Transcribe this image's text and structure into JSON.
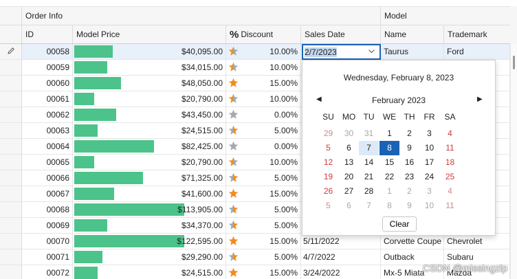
{
  "bands": {
    "order_info": "Order Info",
    "model": "Model"
  },
  "columns": {
    "id": "ID",
    "model_price": "Model Price",
    "discount_icon": "%",
    "discount": "Discount",
    "sales_date": "Sales Date",
    "name": "Name",
    "trademark": "Trademark"
  },
  "rows": [
    {
      "id": "00058",
      "price": "$40,095.00",
      "price_fraction": 0.352,
      "star": "orange-gray",
      "discount": "10.00%",
      "date": "",
      "name": "Taurus",
      "trademark": "Ford"
    },
    {
      "id": "00059",
      "price": "$34,015.00",
      "price_fraction": 0.299,
      "star": "orange-gray",
      "discount": "10.00%",
      "date": "",
      "name": "",
      "trademark": ""
    },
    {
      "id": "00060",
      "price": "$48,050.00",
      "price_fraction": 0.422,
      "star": "orange",
      "discount": "15.00%",
      "date": "",
      "name": "",
      "trademark": ""
    },
    {
      "id": "00061",
      "price": "$20,790.00",
      "price_fraction": 0.183,
      "star": "orange-gray",
      "discount": "10.00%",
      "date": "",
      "name": "",
      "trademark": ""
    },
    {
      "id": "00062",
      "price": "$43,450.00",
      "price_fraction": 0.381,
      "star": "gray",
      "discount": "0.00%",
      "date": "",
      "name": "",
      "trademark": ""
    },
    {
      "id": "00063",
      "price": "$24,515.00",
      "price_fraction": 0.215,
      "star": "gray-orange",
      "discount": "5.00%",
      "date": "",
      "name": "",
      "trademark": ""
    },
    {
      "id": "00064",
      "price": "$82,425.00",
      "price_fraction": 0.724,
      "star": "gray",
      "discount": "0.00%",
      "date": "",
      "name": "",
      "trademark": ""
    },
    {
      "id": "00065",
      "price": "$20,790.00",
      "price_fraction": 0.183,
      "star": "orange-gray",
      "discount": "10.00%",
      "date": "",
      "name": "",
      "trademark": ""
    },
    {
      "id": "00066",
      "price": "$71,325.00",
      "price_fraction": 0.626,
      "star": "gray-orange",
      "discount": "5.00%",
      "date": "",
      "name": "",
      "trademark": ""
    },
    {
      "id": "00067",
      "price": "$41,600.00",
      "price_fraction": 0.365,
      "star": "orange",
      "discount": "15.00%",
      "date": "",
      "name": "",
      "trademark": ""
    },
    {
      "id": "00068",
      "price": "$113,905.00",
      "price_fraction": 1.0,
      "star": "gray-orange",
      "discount": "5.00%",
      "date": "",
      "name": "",
      "trademark": ""
    },
    {
      "id": "00069",
      "price": "$34,370.00",
      "price_fraction": 0.302,
      "star": "gray-orange",
      "discount": "5.00%",
      "date": "",
      "name": "",
      "trademark": ""
    },
    {
      "id": "00070",
      "price": "$122,595.00",
      "price_fraction": 1.0,
      "star": "orange",
      "discount": "15.00%",
      "date": "5/11/2022",
      "name": "Corvette Coupe",
      "trademark": "Chevrolet"
    },
    {
      "id": "00071",
      "price": "$29,290.00",
      "price_fraction": 0.257,
      "star": "gray-orange",
      "discount": "5.00%",
      "date": "4/7/2022",
      "name": "Outback",
      "trademark": "Subaru"
    },
    {
      "id": "00072",
      "price": "$24,515.00",
      "price_fraction": 0.215,
      "star": "orange",
      "discount": "15.00%",
      "date": "3/24/2022",
      "name": "Mx-5 Miata",
      "trademark": "Mazda"
    }
  ],
  "editor": {
    "value": "2/7/2023"
  },
  "calendar": {
    "today_label": "Wednesday, February 8, 2023",
    "month_label": "February 2023",
    "weekdays": [
      "SU",
      "MO",
      "TU",
      "WE",
      "TH",
      "FR",
      "SA"
    ],
    "weeks": [
      [
        "29",
        "30",
        "31",
        "1",
        "2",
        "3",
        "4"
      ],
      [
        "5",
        "6",
        "7",
        "8",
        "9",
        "10",
        "11"
      ],
      [
        "12",
        "13",
        "14",
        "15",
        "16",
        "17",
        "18"
      ],
      [
        "19",
        "20",
        "21",
        "22",
        "23",
        "24",
        "25"
      ],
      [
        "26",
        "27",
        "28",
        "1",
        "2",
        "3",
        "4"
      ],
      [
        "5",
        "6",
        "7",
        "8",
        "9",
        "10",
        "11"
      ]
    ],
    "clear_label": "Clear"
  },
  "colors": {
    "bar": "#4cc38a",
    "star_orange": "#f08c1e",
    "star_gray": "#a4a9b0",
    "selected": "#1a62b5"
  },
  "watermark": "CSDN @missingzlp"
}
